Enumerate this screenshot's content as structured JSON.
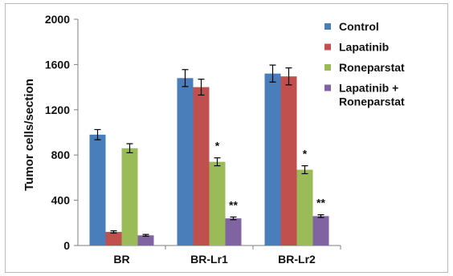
{
  "chart_data": {
    "type": "bar",
    "categories": [
      "BR",
      "BR-Lr1",
      "BR-Lr2"
    ],
    "series": [
      {
        "name": "Control",
        "color": "#4a7ebb",
        "values": [
          980,
          1480,
          1520
        ],
        "errors": [
          45,
          75,
          75
        ]
      },
      {
        "name": "Lapatinib",
        "color": "#c0504d",
        "values": [
          120,
          1400,
          1495
        ],
        "errors": [
          10,
          70,
          75
        ]
      },
      {
        "name": "Roneparstat",
        "color": "#9bbb59",
        "values": [
          860,
          740,
          670
        ],
        "errors": [
          40,
          35,
          35
        ]
      },
      {
        "name_lines": [
          "Lapatinib +",
          "Roneparstat"
        ],
        "name": "Lapatinib + Roneparstat",
        "color": "#8064a2",
        "values": [
          90,
          240,
          260
        ],
        "errors": [
          8,
          12,
          12
        ]
      }
    ],
    "annotations": [
      {
        "category": 1,
        "series": 2,
        "text": "*"
      },
      {
        "category": 1,
        "series": 3,
        "text": "**"
      },
      {
        "category": 2,
        "series": 2,
        "text": "*"
      },
      {
        "category": 2,
        "series": 3,
        "text": "**"
      }
    ],
    "ylabel": "Tumor cells/section",
    "ylim": [
      0,
      2000
    ],
    "yticks": [
      "0",
      "400",
      "800",
      "1200",
      "1600",
      "2000"
    ],
    "legend_position": "top-right",
    "grid": false
  }
}
